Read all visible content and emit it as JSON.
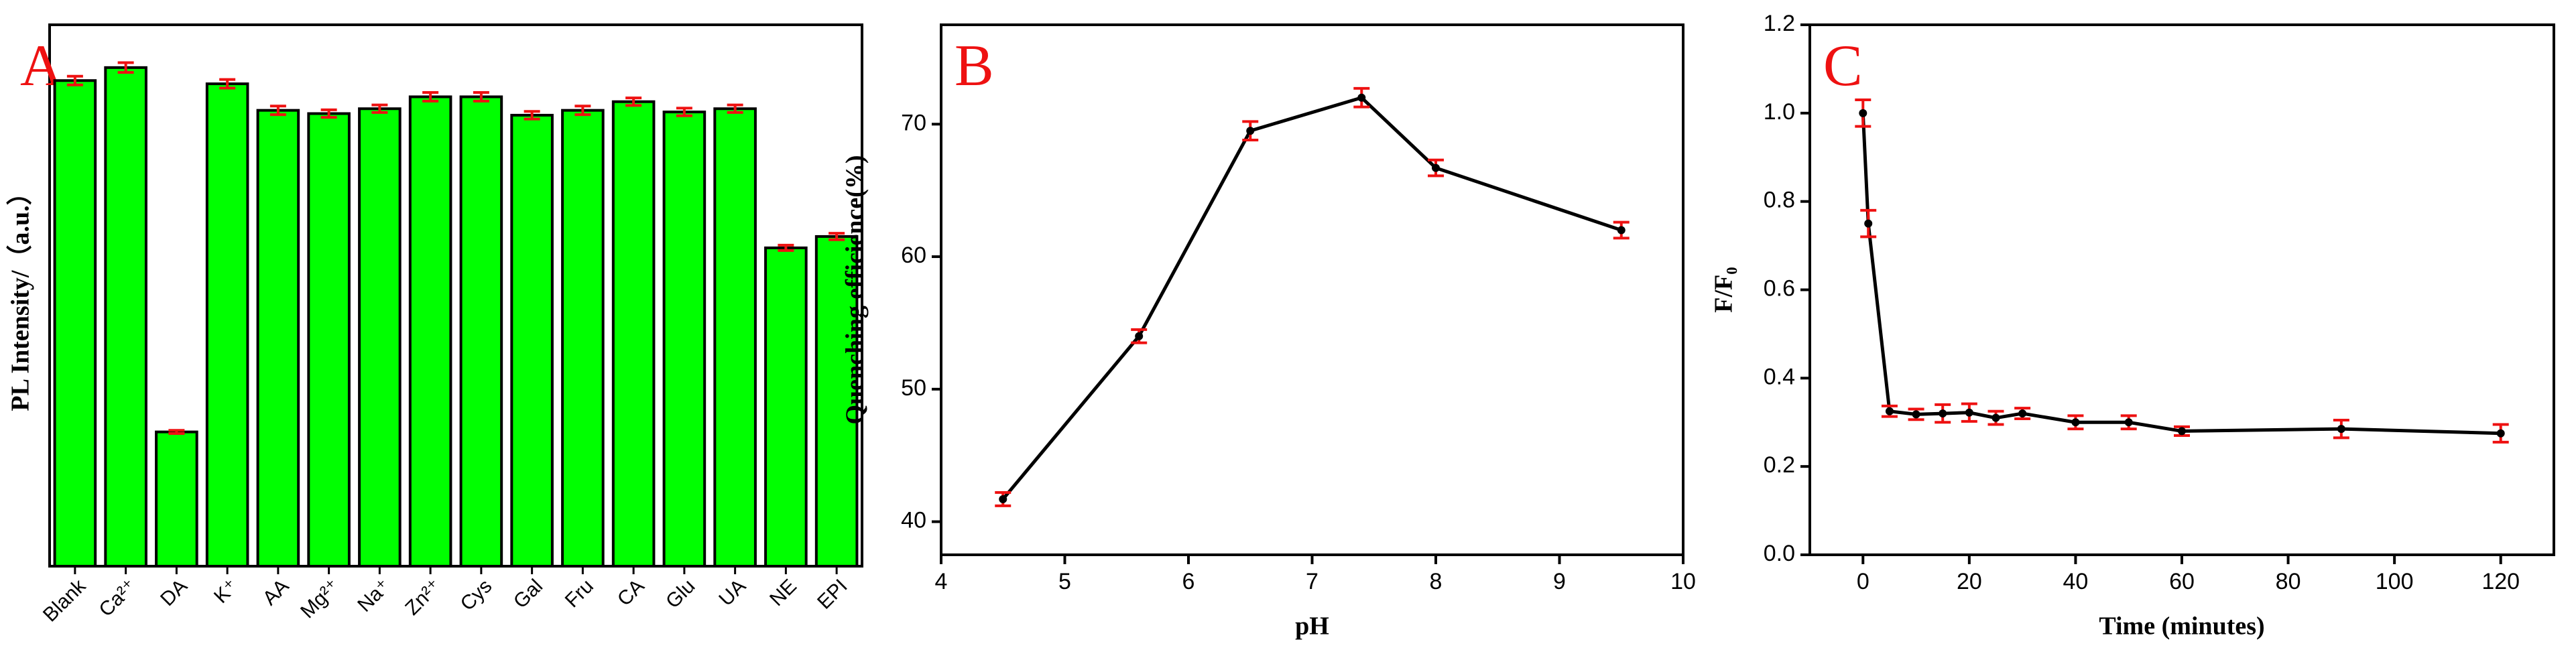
{
  "chart_data": [
    {
      "type": "bar",
      "label": "A",
      "y_label": "PL Intensity/（a.u.）",
      "categories": [
        "Blank",
        "Ca²⁺",
        "DA",
        "K⁺",
        "AA",
        "Mg²⁺",
        "Na⁺",
        "Zn²⁺",
        "Cys",
        "Gal",
        "Fru",
        "CA",
        "Glu",
        "UA",
        "NE",
        "EPI"
      ],
      "values": [
        89.7,
        92.1,
        24.8,
        89.1,
        84.2,
        83.6,
        84.5,
        86.7,
        86.7,
        83.3,
        84.2,
        85.8,
        83.9,
        84.5,
        58.8,
        60.9
      ],
      "errors": [
        0.8,
        0.9,
        0.3,
        0.8,
        0.8,
        0.7,
        0.7,
        0.8,
        0.8,
        0.7,
        0.8,
        0.7,
        0.7,
        0.7,
        0.5,
        0.6
      ],
      "color": "#00ff00",
      "error_color": "#ee1111",
      "ylim": [
        0,
        100
      ]
    },
    {
      "type": "line",
      "label": "B",
      "x_label": "pH",
      "y_label": "Quenching efficience(%)",
      "x": [
        4.5,
        5.6,
        6.5,
        7.4,
        8,
        9.5
      ],
      "values": [
        41.7,
        54,
        69.5,
        72,
        66.7,
        62
      ],
      "errors": [
        0.5,
        0.5,
        0.7,
        0.7,
        0.6,
        0.6
      ],
      "color": "#000000",
      "error_color": "#ee1111",
      "xlim": [
        4,
        10
      ],
      "xticks": [
        4,
        5,
        6,
        7,
        8,
        9,
        10
      ],
      "ylim": [
        37.5,
        77.5
      ],
      "yticks": [
        40,
        50,
        60,
        70
      ]
    },
    {
      "type": "line",
      "label": "C",
      "x_label": "Time (minutes)",
      "y_label": "F/F₀",
      "x": [
        0,
        1,
        5,
        10,
        15,
        20,
        25,
        30,
        40,
        50,
        60,
        90,
        120
      ],
      "values": [
        1.0,
        0.75,
        0.325,
        0.318,
        0.32,
        0.322,
        0.31,
        0.32,
        0.3,
        0.3,
        0.28,
        0.285,
        0.275
      ],
      "errors": [
        0.03,
        0.03,
        0.012,
        0.012,
        0.02,
        0.02,
        0.015,
        0.012,
        0.015,
        0.015,
        0.01,
        0.02,
        0.02
      ],
      "color": "#000000",
      "error_color": "#ee1111",
      "xlim": [
        -10,
        130
      ],
      "xticks": [
        0,
        20,
        40,
        60,
        80,
        100,
        120
      ],
      "ylim": [
        0,
        1.2
      ],
      "yticks": [
        {
          "value": 0,
          "label": "0.0"
        },
        {
          "value": 0.2,
          "label": "0.2"
        },
        {
          "value": 0.4,
          "label": "0.4"
        },
        {
          "value": 0.6,
          "label": "0.6"
        },
        {
          "value": 0.8,
          "label": "0.8"
        },
        {
          "value": 1.0,
          "label": "1.0"
        },
        {
          "value": 1.2,
          "label": "1.2"
        }
      ]
    }
  ]
}
